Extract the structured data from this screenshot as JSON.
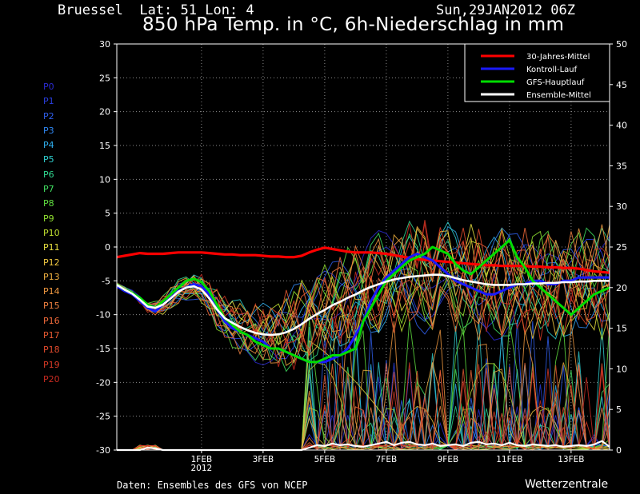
{
  "header": {
    "location": "Bruessel  Lat: 51 Lon: 4",
    "datetime": "Sun,29JAN2012 06Z",
    "title": "850 hPa Temp. in °C, 6h-Niederschlag in mm"
  },
  "footer": {
    "source": "Daten: Ensembles des GFS von NCEP",
    "brand": "Wetterzentrale"
  },
  "members": [
    {
      "label": "P0",
      "color": "#2a2ad0"
    },
    {
      "label": "P1",
      "color": "#2a3fe0"
    },
    {
      "label": "P2",
      "color": "#2f5fee"
    },
    {
      "label": "P3",
      "color": "#2f86f0"
    },
    {
      "label": "P4",
      "color": "#2fb0f0"
    },
    {
      "label": "P5",
      "color": "#2fd0d0"
    },
    {
      "label": "P6",
      "color": "#30d890"
    },
    {
      "label": "P7",
      "color": "#40e060"
    },
    {
      "label": "P8",
      "color": "#60e040"
    },
    {
      "label": "P9",
      "color": "#90e030"
    },
    {
      "label": "P10",
      "color": "#c0e030"
    },
    {
      "label": "P11",
      "color": "#e8e040"
    },
    {
      "label": "P12",
      "color": "#f0c840"
    },
    {
      "label": "P13",
      "color": "#f0b040"
    },
    {
      "label": "P14",
      "color": "#f09840"
    },
    {
      "label": "P15",
      "color": "#f08040"
    },
    {
      "label": "P16",
      "color": "#f06a3a"
    },
    {
      "label": "P17",
      "color": "#e85a32"
    },
    {
      "label": "P18",
      "color": "#e04a2c"
    },
    {
      "label": "P19",
      "color": "#d83a26"
    },
    {
      "label": "P20",
      "color": "#c82a20"
    }
  ],
  "chart_data": {
    "type": "line",
    "x": [
      0,
      1,
      2,
      3,
      4,
      5,
      6,
      7,
      8,
      9,
      10,
      11,
      12,
      13,
      14,
      15,
      16,
      17,
      18,
      19,
      20,
      21,
      22,
      23,
      24,
      25,
      26,
      27,
      28,
      29,
      30,
      31,
      32,
      33,
      34,
      35,
      36,
      37,
      38,
      39,
      40,
      41,
      42,
      43,
      44,
      45,
      46,
      47,
      48,
      49,
      50,
      51,
      52,
      53,
      54,
      55,
      56,
      57,
      58,
      59,
      60,
      61,
      62,
      63,
      64
    ],
    "x_unit": "6h steps from 29JAN2012 06Z",
    "x_ticks": [
      {
        "x": 11,
        "label": "1FEB",
        "sublabel": "2012"
      },
      {
        "x": 19,
        "label": "3FEB"
      },
      {
        "x": 27,
        "label": "5FEB"
      },
      {
        "x": 35,
        "label": "7FEB"
      },
      {
        "x": 43,
        "label": "9FEB"
      },
      {
        "x": 51,
        "label": "11FEB"
      },
      {
        "x": 59,
        "label": "13FEB"
      }
    ],
    "ylim_left": [
      -30,
      30
    ],
    "yticks_left": [
      30,
      25,
      20,
      15,
      10,
      5,
      0,
      -5,
      -10,
      -15,
      -20,
      -25,
      -30
    ],
    "ylim_right": [
      0,
      50
    ],
    "yticks_right": [
      50,
      45,
      40,
      35,
      30,
      25,
      20,
      15,
      10,
      5,
      0
    ],
    "grid": true,
    "legend_position": "top-right",
    "series": [
      {
        "name": "30-Jahres-Mittel",
        "color": "#ff0000",
        "width": 3.2,
        "axis": "left",
        "values": [
          -1.5,
          -1.3,
          -1.1,
          -0.9,
          -1,
          -1,
          -1,
          -0.9,
          -0.8,
          -0.8,
          -0.8,
          -0.8,
          -0.9,
          -1,
          -1.1,
          -1.1,
          -1.2,
          -1.2,
          -1.2,
          -1.3,
          -1.4,
          -1.4,
          -1.5,
          -1.5,
          -1.3,
          -0.8,
          -0.4,
          -0.1,
          -0.3,
          -0.5,
          -0.7,
          -0.8,
          -0.8,
          -0.8,
          -0.9,
          -1,
          -1.2,
          -1.4,
          -1.6,
          -1.8,
          -1.9,
          -2,
          -2.1,
          -2.2,
          -2.3,
          -2.4,
          -2.5,
          -2.6,
          -2.7,
          -2.7,
          -2.8,
          -2.8,
          -2.8,
          -2.8,
          -2.9,
          -2.9,
          -3,
          -3,
          -3.1,
          -3.1,
          -3.2,
          -3.4,
          -3.6,
          -3.7,
          -3.8
        ]
      },
      {
        "name": "Kontroll-Lauf",
        "color": "#1a1aff",
        "width": 3,
        "axis": "left",
        "values": [
          -5.8,
          -6.5,
          -7,
          -8,
          -9,
          -9.5,
          -8.5,
          -7.5,
          -6.5,
          -6,
          -5.5,
          -5.8,
          -7,
          -9,
          -11,
          -12,
          -12.5,
          -13,
          -13.5,
          -14,
          -15,
          -15,
          -15.5,
          -16,
          -16.5,
          -17,
          -17,
          -17,
          -16.5,
          -16,
          -15,
          -13,
          -11,
          -8,
          -6,
          -4.5,
          -3.5,
          -2.5,
          -1.5,
          -1,
          -1.5,
          -2,
          -3,
          -4,
          -5,
          -5.5,
          -6,
          -6.5,
          -7,
          -7,
          -6.5,
          -6,
          -5.5,
          -5.5,
          -5,
          -5,
          -5.5,
          -5.5,
          -5,
          -5,
          -4.5,
          -4.5,
          -4.5,
          -4.5,
          -4.5
        ]
      },
      {
        "name": "GFS-Hauptlauf",
        "color": "#00dd00",
        "width": 3,
        "axis": "left",
        "values": [
          -5.5,
          -6.3,
          -6.8,
          -7.5,
          -8.5,
          -9,
          -8,
          -7,
          -6,
          -5,
          -4.7,
          -5.2,
          -6.5,
          -8.5,
          -10.5,
          -11.5,
          -12.5,
          -13,
          -14,
          -14.5,
          -15,
          -15,
          -15.5,
          -16,
          -16.5,
          -17,
          -17,
          -16.5,
          -16,
          -16,
          -15.5,
          -15,
          -11,
          -9,
          -7,
          -5,
          -4,
          -3,
          -2,
          -1.5,
          -1,
          0,
          -0.5,
          -1,
          -2.5,
          -3.5,
          -4,
          -3,
          -2,
          -1,
          0,
          1,
          -1.5,
          -3,
          -5,
          -6,
          -7,
          -8,
          -9,
          -10,
          -9,
          -8,
          -7,
          -6.5,
          -6
        ]
      },
      {
        "name": "Ensemble-Mittel",
        "color": "#ffffff",
        "width": 2.6,
        "axis": "left",
        "values": [
          -5.6,
          -6.3,
          -6.9,
          -7.8,
          -8.8,
          -9,
          -8.5,
          -7.6,
          -6.6,
          -6,
          -5.8,
          -6.3,
          -7.6,
          -9.2,
          -10.5,
          -11.2,
          -11.8,
          -12.3,
          -12.7,
          -12.9,
          -13,
          -12.9,
          -12.6,
          -12.1,
          -11.4,
          -10.6,
          -9.9,
          -9.3,
          -8.6,
          -8.1,
          -7.5,
          -7,
          -6.4,
          -5.9,
          -5.5,
          -5.1,
          -4.8,
          -4.6,
          -4.4,
          -4.3,
          -4.2,
          -4.1,
          -4.1,
          -4.3,
          -4.6,
          -4.9,
          -5.1,
          -5.3,
          -5.5,
          -5.6,
          -5.6,
          -5.6,
          -5.5,
          -5.5,
          -5.4,
          -5.4,
          -5.3,
          -5.3,
          -5.2,
          -5.2,
          -5.1,
          -5.1,
          -5,
          -5,
          -5
        ]
      },
      {
        "name": "Ensemble-Mittel Niederschlag",
        "color": "#ffffff",
        "width": 2.2,
        "axis": "right",
        "values": [
          0,
          0,
          0,
          0,
          0.3,
          0.2,
          0,
          0,
          0,
          0,
          0,
          0,
          0,
          0,
          0,
          0,
          0,
          0,
          0,
          0,
          0,
          0,
          0,
          0,
          0,
          0.3,
          0.6,
          0.5,
          0.8,
          0.6,
          0.7,
          0.5,
          0.4,
          0.6,
          0.8,
          1,
          0.6,
          0.9,
          1,
          0.7,
          0.6,
          0.8,
          0.5,
          0.6,
          0.7,
          0.5,
          0.9,
          1,
          0.7,
          0.8,
          0.6,
          0.9,
          0.6,
          0.5,
          0.7,
          0.6,
          0.5,
          0.6,
          0.4,
          0.5,
          0.6,
          0.5,
          0.7,
          1.1,
          0.4
        ]
      }
    ],
    "legend": [
      "30-Jahres-Mittel",
      "Kontroll-Lauf",
      "GFS-Hauptlauf",
      "Ensemble-Mittel"
    ]
  }
}
